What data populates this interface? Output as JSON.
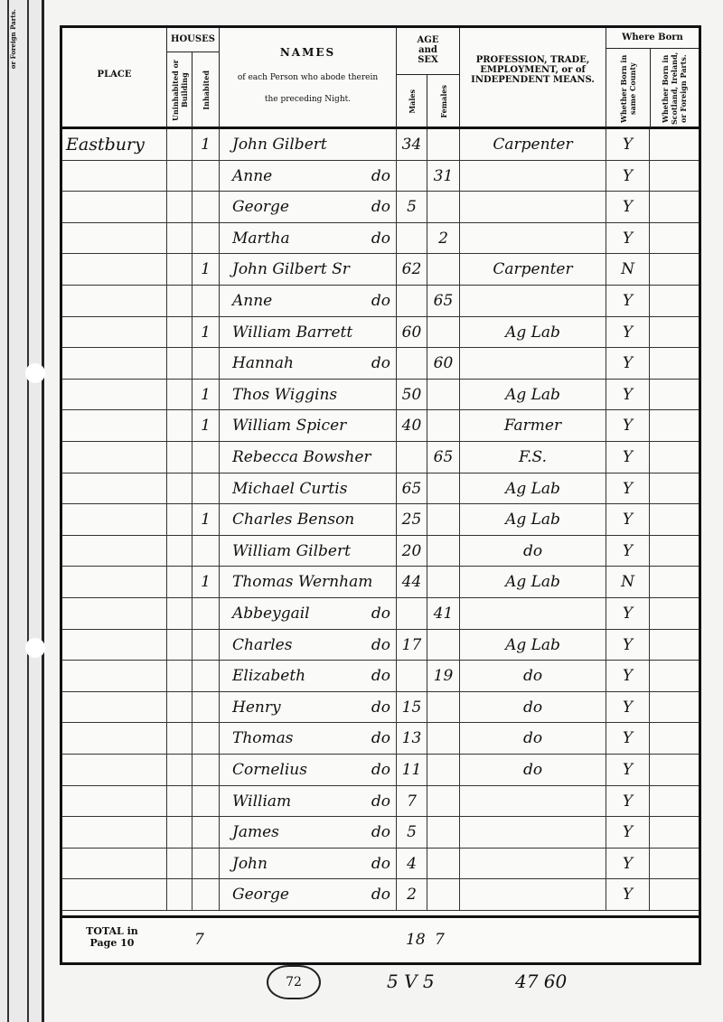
{
  "header": {
    "place": "PLACE",
    "houses": "HOUSES",
    "uninhabited": "Uninhabited or Building",
    "inhabited": "Inhabited",
    "names": "NAMES",
    "names_sub1": "of each Person who abode therein",
    "names_sub2": "the preceding Night.",
    "age_sex": "AGE and SEX",
    "males": "Males",
    "females": "Females",
    "profession": "PROFESSION, TRADE, EMPLOYMENT, or of INDEPENDENT MEANS.",
    "where_born": "Where Born",
    "same_county": "Whether Born in same County",
    "scotland": "Whether Born in Scotland, Ireland, or Foreign Parts.",
    "edge_label": "or Foreign Parts."
  },
  "rows": [
    {
      "place": "Eastbury",
      "inh": "1",
      "name": "John Gilbert",
      "ditto": "",
      "m": "34",
      "f": "",
      "prof": "Carpenter",
      "born": "Y"
    },
    {
      "place": "",
      "inh": "",
      "name": "Anne",
      "ditto": "do",
      "m": "",
      "f": "31",
      "prof": "",
      "born": "Y"
    },
    {
      "place": "",
      "inh": "",
      "name": "George",
      "ditto": "do",
      "m": "5",
      "f": "",
      "prof": "",
      "born": "Y"
    },
    {
      "place": "",
      "inh": "",
      "name": "Martha",
      "ditto": "do",
      "m": "",
      "f": "2",
      "prof": "",
      "born": "Y"
    },
    {
      "place": "",
      "inh": "1",
      "name": "John Gilbert Sr",
      "ditto": "",
      "m": "62",
      "f": "",
      "prof": "Carpenter",
      "born": "N"
    },
    {
      "place": "",
      "inh": "",
      "name": "Anne",
      "ditto": "do",
      "m": "",
      "f": "65",
      "prof": "",
      "born": "Y"
    },
    {
      "place": "",
      "inh": "1",
      "name": "William Barrett",
      "ditto": "",
      "m": "60",
      "f": "",
      "prof": "Ag Lab",
      "born": "Y"
    },
    {
      "place": "",
      "inh": "",
      "name": "Hannah",
      "ditto": "do",
      "m": "",
      "f": "60",
      "prof": "",
      "born": "Y"
    },
    {
      "place": "",
      "inh": "1",
      "name": "Thos Wiggins",
      "ditto": "",
      "m": "50",
      "f": "",
      "prof": "Ag Lab",
      "born": "Y"
    },
    {
      "place": "",
      "inh": "1",
      "name": "William Spicer",
      "ditto": "",
      "m": "40",
      "f": "",
      "prof": "Farmer",
      "born": "Y"
    },
    {
      "place": "",
      "inh": "",
      "name": "Rebecca Bowsher",
      "ditto": "",
      "m": "",
      "f": "65",
      "prof": "F.S.",
      "born": "Y"
    },
    {
      "place": "",
      "inh": "",
      "name": "Michael Curtis",
      "ditto": "",
      "m": "65",
      "f": "",
      "prof": "Ag Lab",
      "born": "Y"
    },
    {
      "place": "",
      "inh": "1",
      "name": "Charles Benson",
      "ditto": "",
      "m": "25",
      "f": "",
      "prof": "Ag Lab",
      "born": "Y"
    },
    {
      "place": "",
      "inh": "",
      "name": "William Gilbert",
      "ditto": "",
      "m": "20",
      "f": "",
      "prof": "do",
      "born": "Y"
    },
    {
      "place": "",
      "inh": "1",
      "name": "Thomas Wernham",
      "ditto": "",
      "m": "44",
      "f": "",
      "prof": "Ag Lab",
      "born": "N"
    },
    {
      "place": "",
      "inh": "",
      "name": "Abbeygail",
      "ditto": "do",
      "m": "",
      "f": "41",
      "prof": "",
      "born": "Y"
    },
    {
      "place": "",
      "inh": "",
      "name": "Charles",
      "ditto": "do",
      "m": "17",
      "f": "",
      "prof": "Ag Lab",
      "born": "Y"
    },
    {
      "place": "",
      "inh": "",
      "name": "Elizabeth",
      "ditto": "do",
      "m": "",
      "f": "19",
      "prof": "do",
      "born": "Y"
    },
    {
      "place": "",
      "inh": "",
      "name": "Henry",
      "ditto": "do",
      "m": "15",
      "f": "",
      "prof": "do",
      "born": "Y"
    },
    {
      "place": "",
      "inh": "",
      "name": "Thomas",
      "ditto": "do",
      "m": "13",
      "f": "",
      "prof": "do",
      "born": "Y"
    },
    {
      "place": "",
      "inh": "",
      "name": "Cornelius",
      "ditto": "do",
      "m": "11",
      "f": "",
      "prof": "do",
      "born": "Y"
    },
    {
      "place": "",
      "inh": "",
      "name": "William",
      "ditto": "do",
      "m": "7",
      "f": "",
      "prof": "",
      "born": "Y"
    },
    {
      "place": "",
      "inh": "",
      "name": "James",
      "ditto": "do",
      "m": "5",
      "f": "",
      "prof": "",
      "born": "Y"
    },
    {
      "place": "",
      "inh": "",
      "name": "John",
      "ditto": "do",
      "m": "4",
      "f": "",
      "prof": "",
      "born": "Y"
    },
    {
      "place": "",
      "inh": "",
      "name": "George",
      "ditto": "do",
      "m": "2",
      "f": "",
      "prof": "",
      "born": "Y"
    }
  ],
  "total": {
    "label": "TOTAL in Page 10",
    "inhabited": "7",
    "males": "18",
    "females": "7"
  },
  "footer": {
    "page_number": "72",
    "tally": "5 V 5",
    "ref": "47 60"
  }
}
